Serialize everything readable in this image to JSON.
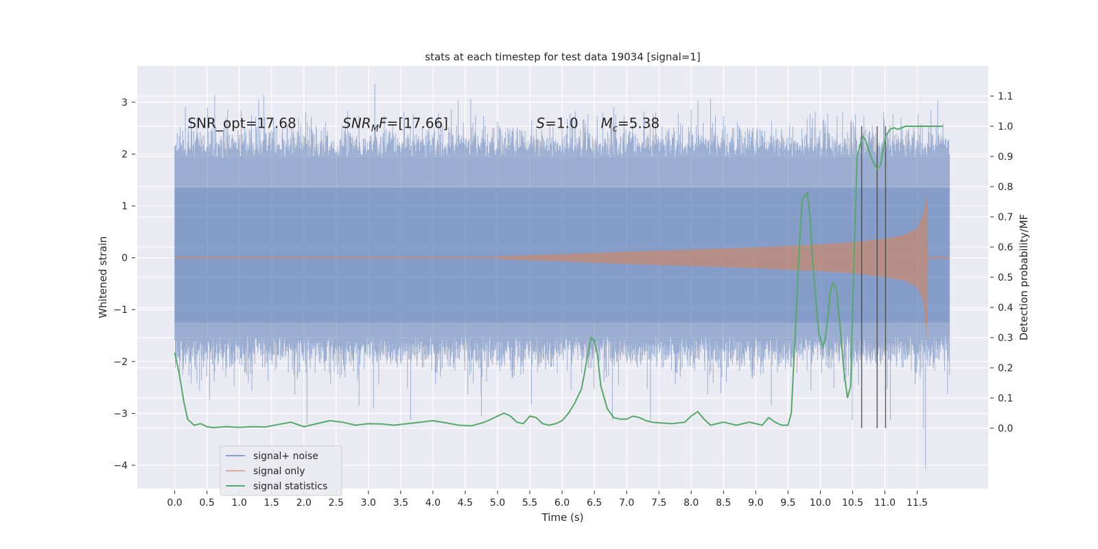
{
  "chart_data": {
    "type": "line",
    "title": "stats at each timestep for test data 19034 [signal=1]",
    "xlabel": "Time (s)",
    "ylabel_left": "Whitened strain",
    "ylabel_right": "Detection probability/MF",
    "xlim": [
      -0.58,
      12.6
    ],
    "ylim_left": [
      -4.45,
      3.7
    ],
    "ylim_right": [
      -0.2,
      1.2
    ],
    "x_ticks": [
      0.0,
      0.5,
      1.0,
      1.5,
      2.0,
      2.5,
      3.0,
      3.5,
      4.0,
      4.5,
      5.0,
      5.5,
      6.0,
      6.5,
      7.0,
      7.5,
      8.0,
      8.5,
      9.0,
      9.5,
      10.0,
      10.5,
      11.0,
      11.5
    ],
    "x_tick_labels": [
      "0.0",
      "0.5",
      "1.0",
      "1.5",
      "2.0",
      "2.5",
      "3.0",
      "3.5",
      "4.0",
      "4.5",
      "5.0",
      "5.5",
      "6.0",
      "6.5",
      "7.0",
      "7.5",
      "8.0",
      "8.5",
      "9.0",
      "9.5",
      "10.0",
      "10.5",
      "11.0",
      "11.5"
    ],
    "y_left_ticks": [
      3,
      2,
      1,
      0,
      -1,
      -2,
      -3,
      -4
    ],
    "y_left_tick_labels": [
      "3",
      "2",
      "1",
      "0",
      "−1",
      "−2",
      "−3",
      "−4"
    ],
    "y_right_ticks": [
      1.1,
      1.0,
      0.9,
      0.8,
      0.7,
      0.6,
      0.5,
      0.4,
      0.3,
      0.2,
      0.1,
      0.0
    ],
    "y_right_tick_labels": [
      "1.1",
      "1.0",
      "0.9",
      "0.8",
      "0.7",
      "0.6",
      "0.5",
      "0.4",
      "0.3",
      "0.2",
      "0.1",
      "0.0"
    ],
    "grid": true,
    "legend_position": "lower-left",
    "annotations": [
      {
        "text": "SNR_opt=17.68",
        "x": 0.2,
        "y": 2.5
      },
      {
        "text": "SNR_MF=[17.66]",
        "x": 2.6,
        "y": 2.5
      },
      {
        "text": "S=1.0",
        "x": 5.6,
        "y": 2.5
      },
      {
        "text": "M_c=5.38",
        "x": 6.6,
        "y": 2.5
      }
    ],
    "series": [
      {
        "name": "signal+ noise",
        "color": "#4c72b0",
        "axis": "left",
        "x_range": [
          0.0,
          12.0
        ],
        "typical_band": [
          -1.5,
          1.9
        ],
        "extremes": [
          {
            "x": 2.0,
            "y": 2.15
          },
          {
            "x": 3.1,
            "y": 3.35
          },
          {
            "x": 3.08,
            "y": -2.9
          },
          {
            "x": 2.05,
            "y": -3.2
          },
          {
            "x": 4.75,
            "y": -3.05
          },
          {
            "x": 11.55,
            "y": 2.3
          },
          {
            "x": 11.63,
            "y": -4.07
          },
          {
            "x": 11.6,
            "y": -3.3
          },
          {
            "x": 6.8,
            "y": 2.9
          },
          {
            "x": 11.25,
            "y": 2.7
          },
          {
            "x": 7.45,
            "y": 2.8
          }
        ]
      },
      {
        "name": "signal only",
        "color": "#dd8452",
        "axis": "left",
        "x": [
          5.0,
          6.0,
          7.0,
          8.0,
          9.0,
          10.0,
          10.5,
          11.0,
          11.3,
          11.5,
          11.6,
          11.65,
          11.67
        ],
        "amplitude": [
          0.03,
          0.07,
          0.12,
          0.16,
          0.2,
          0.26,
          0.3,
          0.37,
          0.44,
          0.56,
          0.85,
          1.2,
          0.0
        ]
      },
      {
        "name": "signal statistics",
        "color": "#55a868",
        "axis": "right",
        "x": [
          0.0,
          0.07,
          0.14,
          0.2,
          0.3,
          0.4,
          0.5,
          0.6,
          0.8,
          1.0,
          1.2,
          1.4,
          1.6,
          1.8,
          2.0,
          2.2,
          2.4,
          2.6,
          2.8,
          3.0,
          3.2,
          3.4,
          3.6,
          3.8,
          4.0,
          4.2,
          4.4,
          4.6,
          4.8,
          4.95,
          5.1,
          5.2,
          5.3,
          5.4,
          5.5,
          5.6,
          5.7,
          5.8,
          5.9,
          6.0,
          6.1,
          6.2,
          6.3,
          6.35,
          6.4,
          6.45,
          6.5,
          6.55,
          6.6,
          6.7,
          6.8,
          6.9,
          7.0,
          7.1,
          7.2,
          7.3,
          7.4,
          7.5,
          7.7,
          7.9,
          8.0,
          8.1,
          8.2,
          8.3,
          8.4,
          8.5,
          8.6,
          8.7,
          8.8,
          8.9,
          9.0,
          9.1,
          9.2,
          9.3,
          9.4,
          9.5,
          9.55,
          9.62,
          9.68,
          9.72,
          9.76,
          9.8,
          9.84,
          9.88,
          9.93,
          9.98,
          10.04,
          10.08,
          10.12,
          10.16,
          10.2,
          10.25,
          10.3,
          10.36,
          10.42,
          10.47,
          10.52,
          10.57,
          10.62,
          10.66,
          10.7,
          10.75,
          10.82,
          10.88,
          10.93,
          10.98,
          11.02,
          11.08,
          11.14,
          11.2,
          11.26,
          11.32,
          11.4,
          11.5,
          11.6,
          11.7,
          11.8,
          11.9
        ],
        "values": [
          0.25,
          0.18,
          0.09,
          0.03,
          0.01,
          0.015,
          0.005,
          0.002,
          0.005,
          0.003,
          0.005,
          0.004,
          0.012,
          0.02,
          0.005,
          0.015,
          0.025,
          0.02,
          0.01,
          0.015,
          0.014,
          0.01,
          0.015,
          0.02,
          0.025,
          0.018,
          0.01,
          0.008,
          0.02,
          0.035,
          0.05,
          0.04,
          0.02,
          0.015,
          0.04,
          0.035,
          0.015,
          0.01,
          0.015,
          0.025,
          0.05,
          0.085,
          0.13,
          0.185,
          0.25,
          0.3,
          0.29,
          0.24,
          0.14,
          0.065,
          0.035,
          0.03,
          0.03,
          0.04,
          0.035,
          0.025,
          0.02,
          0.018,
          0.015,
          0.02,
          0.04,
          0.055,
          0.03,
          0.01,
          0.015,
          0.02,
          0.015,
          0.01,
          0.015,
          0.02,
          0.015,
          0.01,
          0.035,
          0.02,
          0.01,
          0.01,
          0.05,
          0.35,
          0.62,
          0.755,
          0.77,
          0.78,
          0.7,
          0.56,
          0.42,
          0.31,
          0.27,
          0.3,
          0.38,
          0.46,
          0.48,
          0.46,
          0.35,
          0.2,
          0.1,
          0.14,
          0.55,
          0.9,
          0.94,
          0.965,
          0.955,
          0.92,
          0.88,
          0.86,
          0.87,
          0.93,
          0.97,
          0.99,
          0.995,
          0.99,
          0.995,
          1.0,
          1.0,
          1.0,
          1.0,
          1.0,
          1.0,
          1.0
        ]
      }
    ],
    "vertical_markers": [
      {
        "x": 10.64,
        "y_right_range": [
          0.0,
          1.0
        ]
      },
      {
        "x": 10.88,
        "y_right_range": [
          0.0,
          1.0
        ]
      },
      {
        "x": 11.01,
        "y_right_range": [
          0.0,
          1.0
        ]
      }
    ]
  }
}
